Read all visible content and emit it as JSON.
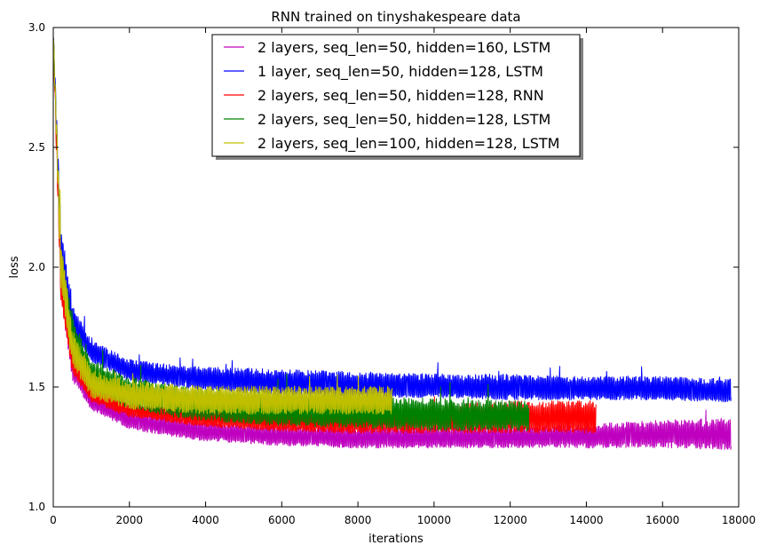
{
  "chart_data": {
    "type": "line",
    "title": "RNN trained on tinyshakespeare data",
    "xlabel": "iterations",
    "ylabel": "loss",
    "xlim": [
      0,
      18000
    ],
    "ylim": [
      1.0,
      3.0
    ],
    "xticks": [
      "0",
      "2000",
      "4000",
      "6000",
      "8000",
      "10000",
      "12000",
      "14000",
      "16000",
      "18000"
    ],
    "yticks": [
      "1.0",
      "1.5",
      "2.0",
      "2.5",
      "3.0"
    ],
    "grid": false,
    "legend_position": "top-center",
    "series": [
      {
        "name": "2 layers, seq_len=50, hidden=160, LSTM",
        "color": "#bf00bf",
        "end": 17800,
        "x": [
          0,
          200,
          500,
          1000,
          2000,
          3000,
          4000,
          6000,
          8000,
          10000,
          12000,
          14000,
          16000,
          17800
        ],
        "low": [
          2.95,
          1.85,
          1.52,
          1.4,
          1.32,
          1.29,
          1.27,
          1.25,
          1.24,
          1.24,
          1.24,
          1.24,
          1.24,
          1.23
        ],
        "high": [
          3.0,
          2.05,
          1.65,
          1.48,
          1.41,
          1.38,
          1.36,
          1.34,
          1.34,
          1.34,
          1.34,
          1.35,
          1.37,
          1.38
        ]
      },
      {
        "name": "1 layer, seq_len=50, hidden=128, LSTM",
        "color": "#0000ff",
        "end": 17800,
        "x": [
          0,
          200,
          500,
          1000,
          2000,
          3000,
          4000,
          6000,
          8000,
          10000,
          12000,
          14000,
          16000,
          17800
        ],
        "low": [
          2.95,
          2.0,
          1.72,
          1.6,
          1.52,
          1.5,
          1.48,
          1.46,
          1.45,
          1.45,
          1.44,
          1.44,
          1.44,
          1.43
        ],
        "high": [
          3.0,
          2.2,
          1.85,
          1.7,
          1.62,
          1.6,
          1.59,
          1.58,
          1.57,
          1.56,
          1.56,
          1.55,
          1.55,
          1.54
        ]
      },
      {
        "name": "2 layers, seq_len=50, hidden=128, RNN",
        "color": "#ff0000",
        "end": 14250,
        "x": [
          0,
          200,
          500,
          1000,
          2000,
          3000,
          4000,
          6000,
          8000,
          10000,
          12000,
          14250
        ],
        "low": [
          2.9,
          1.85,
          1.55,
          1.43,
          1.37,
          1.35,
          1.33,
          1.31,
          1.3,
          1.3,
          1.3,
          1.3
        ],
        "high": [
          3.0,
          2.0,
          1.68,
          1.52,
          1.44,
          1.42,
          1.41,
          1.4,
          1.4,
          1.43,
          1.45,
          1.45
        ]
      },
      {
        "name": "2 layers, seq_len=50, hidden=128, LSTM",
        "color": "#008000",
        "end": 12500,
        "x": [
          0,
          200,
          500,
          1000,
          2000,
          3000,
          4000,
          6000,
          8000,
          10000,
          12500
        ],
        "low": [
          2.95,
          1.95,
          1.65,
          1.48,
          1.4,
          1.37,
          1.35,
          1.33,
          1.32,
          1.31,
          1.31
        ],
        "high": [
          3.0,
          2.1,
          1.8,
          1.62,
          1.55,
          1.52,
          1.5,
          1.48,
          1.47,
          1.46,
          1.45
        ]
      },
      {
        "name": "2 layers, seq_len=100, hidden=128, LSTM",
        "color": "#bfbf00",
        "end": 8900,
        "x": [
          0,
          200,
          500,
          1000,
          2000,
          3000,
          4000,
          6000,
          8000,
          8900
        ],
        "low": [
          2.95,
          1.9,
          1.58,
          1.45,
          1.4,
          1.39,
          1.38,
          1.38,
          1.38,
          1.38
        ],
        "high": [
          3.0,
          2.15,
          1.75,
          1.58,
          1.53,
          1.52,
          1.51,
          1.51,
          1.51,
          1.51
        ]
      }
    ]
  }
}
